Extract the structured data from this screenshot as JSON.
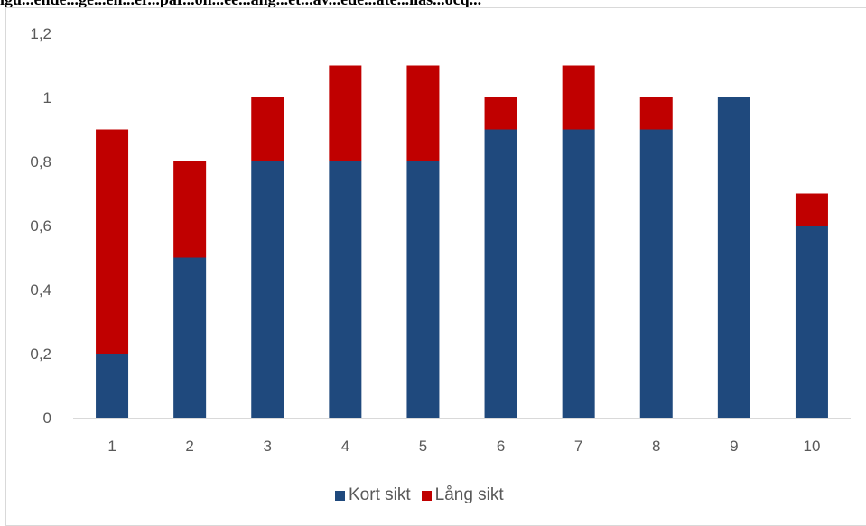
{
  "figure": {
    "title_fragment": "igu...ende...ge...en...er...par...on...ee...ang...et...av...ede...ate...nas...ocq..."
  },
  "chart_data": {
    "type": "bar",
    "stacked": true,
    "categories": [
      "1",
      "2",
      "3",
      "4",
      "5",
      "6",
      "7",
      "8",
      "9",
      "10"
    ],
    "series": [
      {
        "name": "Kort sikt",
        "color": "#1f497d",
        "values": [
          0.2,
          0.5,
          0.8,
          0.8,
          0.8,
          0.9,
          0.9,
          0.9,
          1.0,
          0.6
        ]
      },
      {
        "name": "Lång sikt",
        "color": "#c00000",
        "values": [
          0.7,
          0.3,
          0.2,
          0.3,
          0.3,
          0.1,
          0.2,
          0.1,
          0.0,
          0.1
        ]
      }
    ],
    "ylim": [
      0,
      1.2
    ],
    "yticks": [
      "0",
      "0,2",
      "0,4",
      "0,6",
      "0,8",
      "1",
      "1,2"
    ],
    "grid": false,
    "legend_position": "bottom",
    "title": "",
    "xlabel": "",
    "ylabel": ""
  }
}
